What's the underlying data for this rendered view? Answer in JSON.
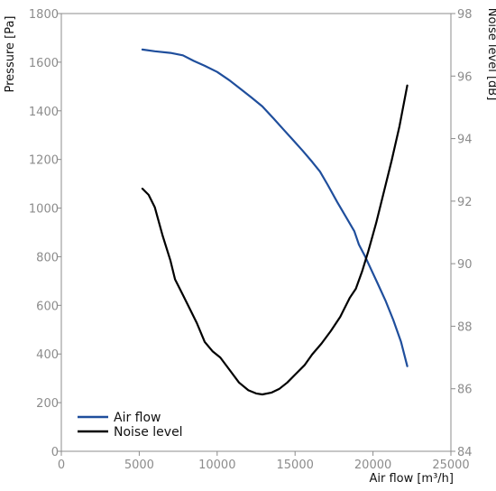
{
  "chart_data": {
    "type": "line",
    "xlabel": "Air flow [m³/h]",
    "ylabel": "Pressure [Pa]",
    "y2label": "Noise level [dB]",
    "xlim": [
      0,
      25000
    ],
    "ylim": [
      0,
      1800
    ],
    "y2lim": [
      84,
      98
    ],
    "xticks": [
      0,
      5000,
      10000,
      15000,
      20000,
      25000
    ],
    "yticks": [
      0,
      200,
      400,
      600,
      800,
      1000,
      1200,
      1400,
      1600,
      1800
    ],
    "y2ticks": [
      84,
      86,
      88,
      90,
      92,
      94,
      96,
      98
    ],
    "grid": false,
    "legend_position": "bottom-left",
    "series": [
      {
        "name": "Air flow",
        "axis": "left",
        "color": "#1f4e9c",
        "points": [
          [
            5200,
            1652
          ],
          [
            6000,
            1645
          ],
          [
            7000,
            1638
          ],
          [
            7800,
            1628
          ],
          [
            8500,
            1605
          ],
          [
            9200,
            1585
          ],
          [
            10000,
            1560
          ],
          [
            10800,
            1525
          ],
          [
            11500,
            1490
          ],
          [
            12200,
            1455
          ],
          [
            12900,
            1418
          ],
          [
            13600,
            1370
          ],
          [
            14300,
            1320
          ],
          [
            14800,
            1285
          ],
          [
            15500,
            1235
          ],
          [
            16100,
            1190
          ],
          [
            16600,
            1150
          ],
          [
            17100,
            1095
          ],
          [
            17700,
            1025
          ],
          [
            18300,
            960
          ],
          [
            18800,
            905
          ],
          [
            19100,
            850
          ],
          [
            19500,
            800
          ],
          [
            19900,
            745
          ],
          [
            20300,
            690
          ],
          [
            20800,
            620
          ],
          [
            21300,
            540
          ],
          [
            21800,
            450
          ],
          [
            22200,
            350
          ]
        ]
      },
      {
        "name": "Noise level",
        "axis": "right",
        "color": "#000000",
        "points": [
          [
            5200,
            92.4
          ],
          [
            5600,
            92.2
          ],
          [
            6000,
            91.8
          ],
          [
            6500,
            90.9
          ],
          [
            7000,
            90.1
          ],
          [
            7300,
            89.5
          ],
          [
            7800,
            89.0
          ],
          [
            8200,
            88.6
          ],
          [
            8700,
            88.1
          ],
          [
            9200,
            87.5
          ],
          [
            9700,
            87.2
          ],
          [
            10200,
            87.0
          ],
          [
            10800,
            86.6
          ],
          [
            11400,
            86.2
          ],
          [
            12000,
            85.95
          ],
          [
            12500,
            85.85
          ],
          [
            12900,
            85.82
          ],
          [
            13500,
            85.88
          ],
          [
            14000,
            86.0
          ],
          [
            14500,
            86.2
          ],
          [
            15000,
            86.45
          ],
          [
            15600,
            86.75
          ],
          [
            16100,
            87.1
          ],
          [
            16700,
            87.45
          ],
          [
            17300,
            87.85
          ],
          [
            17900,
            88.3
          ],
          [
            18500,
            88.9
          ],
          [
            18900,
            89.2
          ],
          [
            19300,
            89.75
          ],
          [
            19700,
            90.4
          ],
          [
            20200,
            91.3
          ],
          [
            20700,
            92.3
          ],
          [
            21200,
            93.3
          ],
          [
            21700,
            94.4
          ],
          [
            22200,
            95.7
          ]
        ]
      }
    ]
  }
}
